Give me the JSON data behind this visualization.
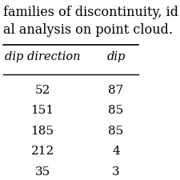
{
  "title_lines": [
    "families of discontinuity, id",
    "al analysis on point cloud."
  ],
  "col_headers": [
    "dip direction",
    "dip"
  ],
  "rows": [
    [
      "52",
      "87"
    ],
    [
      "151",
      "85"
    ],
    [
      "185",
      "85"
    ],
    [
      "212",
      "4"
    ],
    [
      "35",
      "3"
    ]
  ],
  "background_color": "#ffffff",
  "text_color": "#000000",
  "font_size_title": 11.5,
  "font_size_header": 10.5,
  "font_size_data": 11.0
}
